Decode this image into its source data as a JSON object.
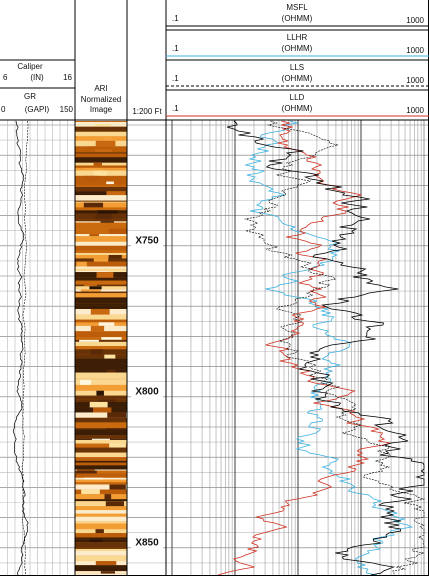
{
  "track1": {
    "caliper": {
      "name": "Caliper",
      "unit": "(IN)",
      "min": "6",
      "max": "16"
    },
    "gr": {
      "name": "GR",
      "unit": "(GAPI)",
      "min": "0",
      "max": "150"
    }
  },
  "image_track": {
    "lines": [
      "ARI",
      "Normalized",
      "Image"
    ]
  },
  "depth_track": {
    "scale": "1:200 Ft",
    "labels": [
      "X750",
      "X800",
      "X850"
    ]
  },
  "resistivity_track": [
    {
      "name": "MSFL",
      "unit": "(OHMM)",
      "min": ".1",
      "max": "1000"
    },
    {
      "name": "LLHR",
      "unit": "(OHMM)",
      "min": ".1",
      "max": "1000"
    },
    {
      "name": "LLS",
      "unit": "(OHMM)",
      "min": ".1",
      "max": "1000"
    },
    {
      "name": "LLD",
      "unit": "(OHMM)",
      "min": ".1",
      "max": "1000"
    }
  ]
}
